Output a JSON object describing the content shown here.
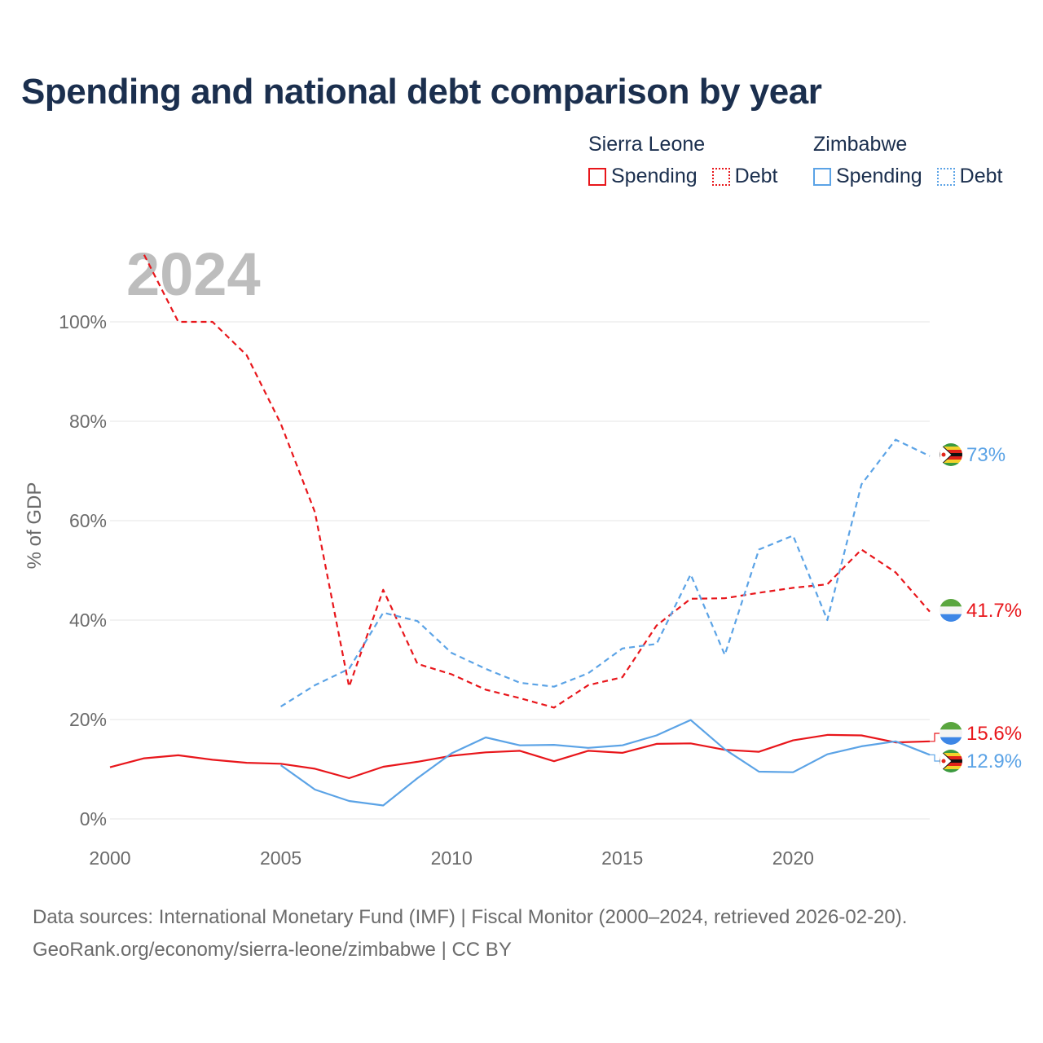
{
  "chart_data": {
    "type": "line",
    "title": "Spending and national debt comparison by year",
    "year_watermark": "2024",
    "ylabel": "% of GDP",
    "xlabel": "",
    "xlim": [
      2000,
      2024
    ],
    "ylim": [
      0,
      115
    ],
    "x_ticks": [
      "2000",
      "2005",
      "2010",
      "2015",
      "2020"
    ],
    "x_tick_values": [
      2000,
      2005,
      2010,
      2015,
      2020
    ],
    "y_ticks": [
      "0%",
      "20%",
      "40%",
      "60%",
      "80%",
      "100%"
    ],
    "y_tick_values": [
      0,
      20,
      40,
      60,
      80,
      100
    ],
    "grid": true,
    "legend": {
      "groups": [
        {
          "title": "Sierra Leone",
          "items": [
            {
              "label": "Spending",
              "style": "solid",
              "color": "#e8161b"
            },
            {
              "label": "Debt",
              "style": "dotted",
              "color": "#e8161b"
            }
          ]
        },
        {
          "title": "Zimbabwe",
          "items": [
            {
              "label": "Spending",
              "style": "solid",
              "color": "#5ba3e6"
            },
            {
              "label": "Debt",
              "style": "dotted",
              "color": "#5ba3e6"
            }
          ]
        }
      ]
    },
    "series": [
      {
        "name": "Sierra Leone Debt",
        "country": "Sierra Leone",
        "color": "#e8161b",
        "dash": true,
        "x": [
          2001,
          2002,
          2003,
          2004,
          2005,
          2006,
          2007,
          2008,
          2009,
          2010,
          2011,
          2012,
          2013,
          2014,
          2015,
          2016,
          2017,
          2018,
          2019,
          2020,
          2021,
          2022,
          2023,
          2024
        ],
        "values": [
          113.5,
          100,
          100,
          93.3,
          79.5,
          61.7,
          26.6,
          46.1,
          31.2,
          29.1,
          26.0,
          24.3,
          22.4,
          26.9,
          28.5,
          38.9,
          44.3,
          44.4,
          45.5,
          46.5,
          47.2,
          54.2,
          49.6,
          41.7
        ],
        "end_label": "41.7%"
      },
      {
        "name": "Zimbabwe Debt",
        "country": "Zimbabwe",
        "color": "#5ba3e6",
        "dash": true,
        "x": [
          2005,
          2006,
          2007,
          2008,
          2009,
          2010,
          2011,
          2012,
          2013,
          2014,
          2015,
          2016,
          2017,
          2018,
          2019,
          2020,
          2021,
          2022,
          2023,
          2024
        ],
        "values": [
          22.6,
          26.9,
          30.2,
          41.5,
          39.8,
          33.4,
          30.2,
          27.4,
          26.6,
          29.3,
          34.3,
          35.2,
          49.2,
          33.0,
          54.2,
          57.0,
          40.0,
          67.3,
          76.3,
          73.0
        ],
        "end_label": "73%"
      },
      {
        "name": "Sierra Leone Spending",
        "country": "Sierra Leone",
        "color": "#e8161b",
        "dash": false,
        "x": [
          2000,
          2001,
          2002,
          2003,
          2004,
          2005,
          2006,
          2007,
          2008,
          2009,
          2010,
          2011,
          2012,
          2013,
          2014,
          2015,
          2016,
          2017,
          2018,
          2019,
          2020,
          2021,
          2022,
          2023,
          2024
        ],
        "values": [
          10.4,
          12.2,
          12.8,
          11.9,
          11.3,
          11.1,
          10.1,
          8.2,
          10.5,
          11.5,
          12.7,
          13.4,
          13.7,
          11.6,
          13.7,
          13.3,
          15.1,
          15.2,
          13.9,
          13.5,
          15.8,
          16.9,
          16.8,
          15.4,
          15.6
        ],
        "end_label": "15.6%"
      },
      {
        "name": "Zimbabwe Spending",
        "country": "Zimbabwe",
        "color": "#5ba3e6",
        "dash": false,
        "x": [
          2005,
          2006,
          2007,
          2008,
          2009,
          2010,
          2011,
          2012,
          2013,
          2014,
          2015,
          2016,
          2017,
          2018,
          2019,
          2020,
          2021,
          2022,
          2023,
          2024
        ],
        "values": [
          10.8,
          5.9,
          3.6,
          2.7,
          8.2,
          13.2,
          16.4,
          14.8,
          14.9,
          14.3,
          14.8,
          16.8,
          19.9,
          14.0,
          9.5,
          9.4,
          13.0,
          14.6,
          15.6,
          12.9
        ],
        "end_label": "12.9%"
      }
    ]
  },
  "sources": {
    "line1": "Data sources: International Monetary Fund (IMF) | Fiscal Monitor (2000–2024, retrieved 2026-02-20).",
    "line2": "GeoRank.org/economy/sierra-leone/zimbabwe | CC BY"
  }
}
